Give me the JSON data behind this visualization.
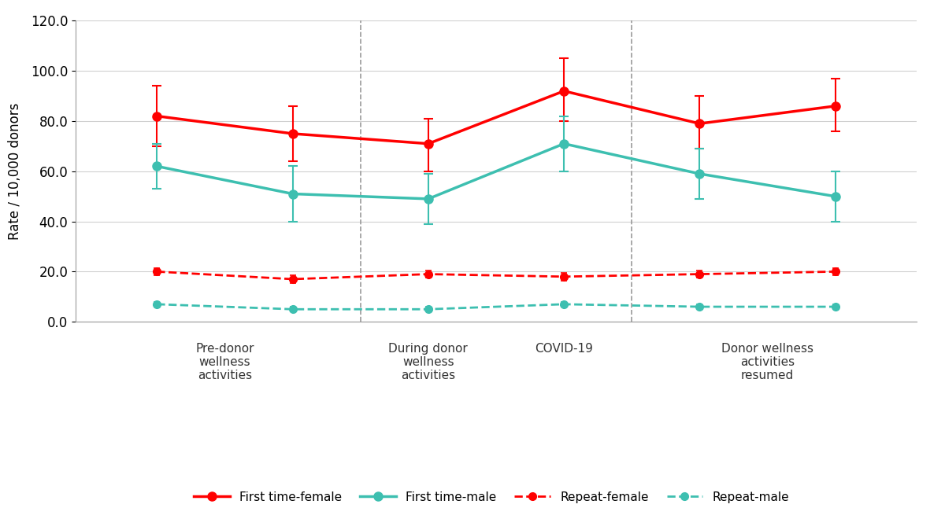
{
  "x_positions": [
    1,
    2,
    3,
    4,
    5,
    6
  ],
  "first_time_female": [
    82,
    75,
    71,
    92,
    79,
    86
  ],
  "first_time_female_err_lo": [
    12,
    11,
    11,
    12,
    10,
    10
  ],
  "first_time_female_err_hi": [
    12,
    11,
    10,
    13,
    11,
    11
  ],
  "first_time_male": [
    62,
    51,
    49,
    71,
    59,
    50
  ],
  "first_time_male_err_lo": [
    9,
    11,
    10,
    11,
    10,
    10
  ],
  "first_time_male_err_hi": [
    9,
    11,
    10,
    11,
    10,
    10
  ],
  "repeat_female": [
    20,
    17,
    19,
    18,
    19,
    20
  ],
  "repeat_female_err_lo": [
    1.5,
    1.5,
    1.5,
    1.5,
    1.5,
    1.5
  ],
  "repeat_female_err_hi": [
    1.5,
    1.5,
    1.5,
    1.5,
    1.5,
    1.5
  ],
  "repeat_male": [
    7,
    5,
    5,
    7,
    6,
    6
  ],
  "repeat_male_err_lo": [
    1,
    1,
    1,
    1,
    1,
    1
  ],
  "repeat_male_err_hi": [
    1,
    1,
    1,
    1,
    1,
    1
  ],
  "color_red": "#FF0000",
  "color_teal": "#3DBFB0",
  "vline_positions": [
    2.5,
    4.5
  ],
  "ylabel": "Rate / 10,000 donors",
  "ylim": [
    0.0,
    120.0
  ],
  "yticks": [
    0.0,
    20.0,
    40.0,
    60.0,
    80.0,
    100.0,
    120.0
  ],
  "legend_labels": [
    "First time-female",
    "First time-male",
    "Repeat-female",
    "Repeat-male"
  ],
  "section_label_configs": [
    {
      "x": 1.5,
      "label": "Pre-donor\nwellness\nactivities"
    },
    {
      "x": 3.0,
      "label": "During donor\nwellness\nactivities"
    },
    {
      "x": 4.0,
      "label": "COVID-19"
    },
    {
      "x": 5.5,
      "label": "Donor wellness\nactivities\nresumed"
    }
  ],
  "background_color": "#FFFFFF",
  "grid_color": "#D0D0D0"
}
